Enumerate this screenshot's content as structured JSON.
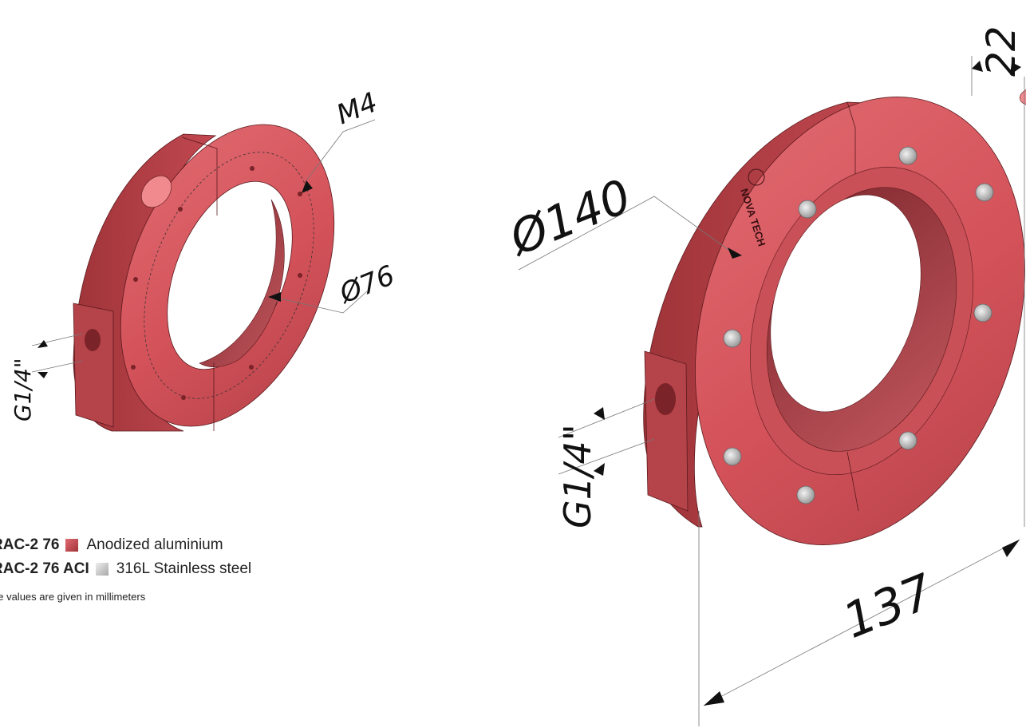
{
  "colors": {
    "ring_red": "#d4525a",
    "ring_dark": "#a83a40",
    "ring_inner": "#8a2c32",
    "steel": "#c8c8c8"
  },
  "left_view": {
    "labels": {
      "thread_top": "M4",
      "bore_diameter": "Ø76",
      "port_thread": "G1/4\""
    }
  },
  "right_view": {
    "labels": {
      "outer_diameter": "Ø140",
      "thickness": "22",
      "port_thread": "G1/4\"",
      "overall_length": "137"
    },
    "logo_text": "NOVA TECH"
  },
  "legend": {
    "items": [
      {
        "code": "RAC-2 76",
        "material": "Anodized aluminium",
        "swatch_color": "#c0393f"
      },
      {
        "code": "RAC-2 76 ACI",
        "material": "316L Stainless steel",
        "swatch_color": "#c8c8c8"
      }
    ],
    "note": "he values are given in millimeters"
  }
}
